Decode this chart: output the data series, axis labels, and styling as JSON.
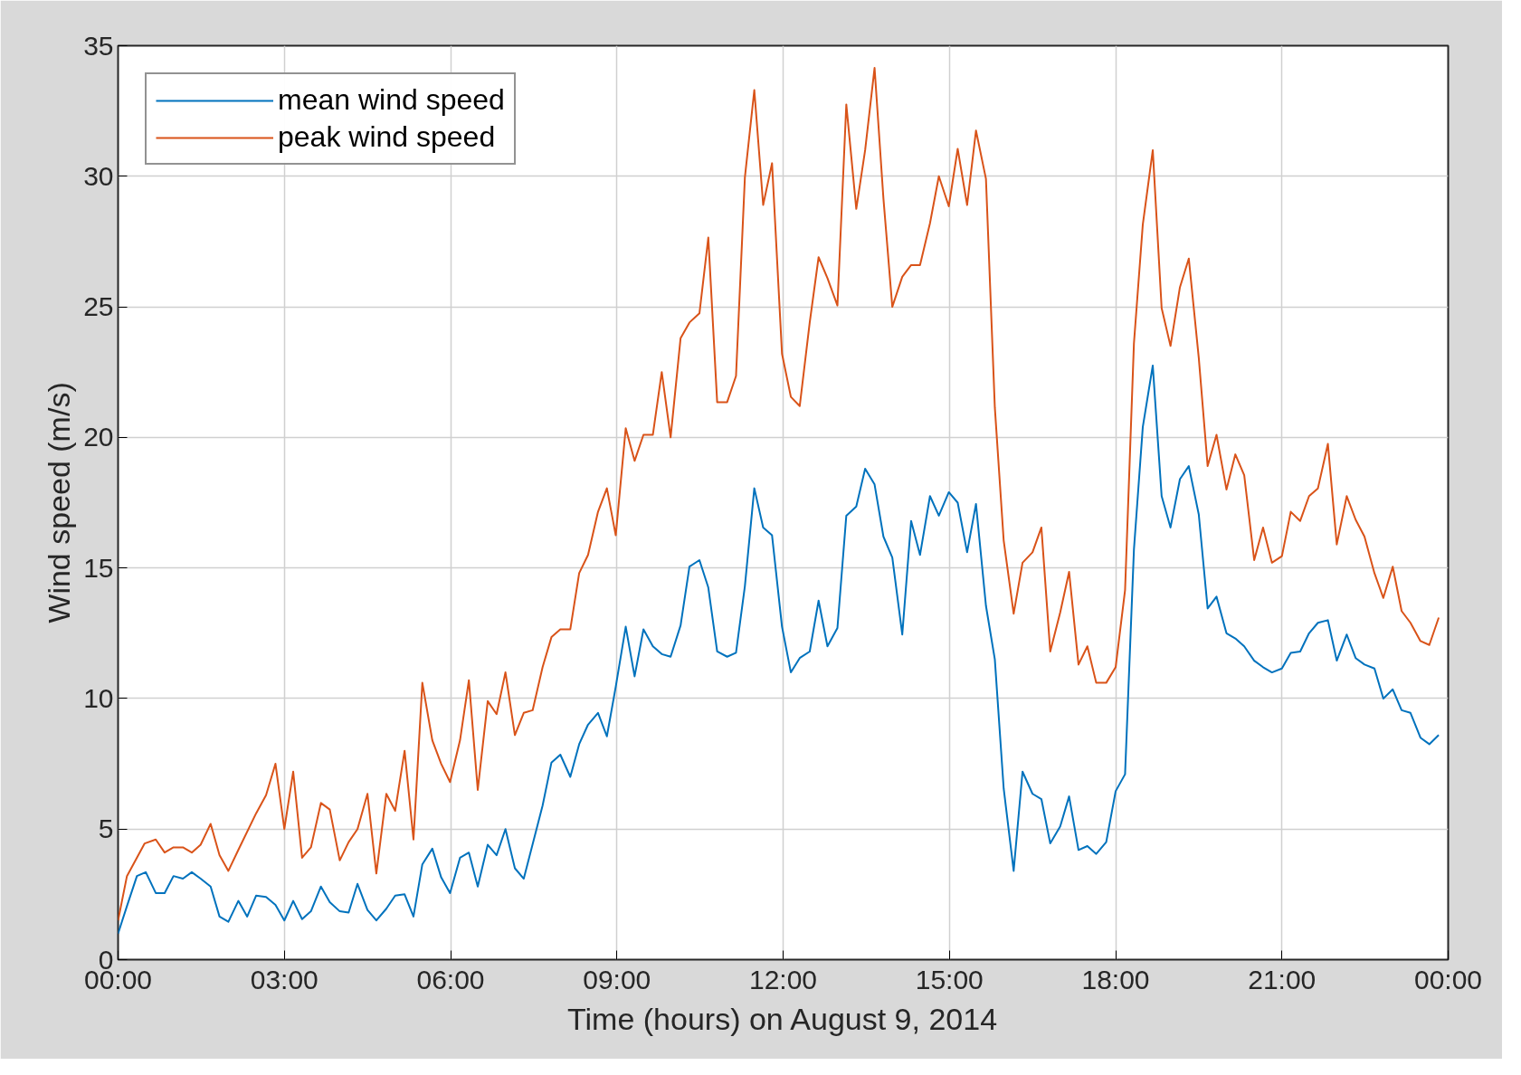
{
  "chart_data": {
    "type": "line",
    "xlabel": "Time (hours) on August 9, 2014",
    "ylabel": "Wind speed (m/s)",
    "xlim": [
      0,
      24
    ],
    "ylim": [
      0,
      35
    ],
    "xticks": [
      {
        "value": 0,
        "label": "00:00"
      },
      {
        "value": 3,
        "label": "03:00"
      },
      {
        "value": 6,
        "label": "06:00"
      },
      {
        "value": 9,
        "label": "09:00"
      },
      {
        "value": 12,
        "label": "12:00"
      },
      {
        "value": 15,
        "label": "15:00"
      },
      {
        "value": 18,
        "label": "18:00"
      },
      {
        "value": 21,
        "label": "21:00"
      },
      {
        "value": 24,
        "label": "00:00"
      }
    ],
    "yticks": [
      0,
      5,
      10,
      15,
      20,
      25,
      30,
      35
    ],
    "grid": true,
    "legend": "top left",
    "marker": "none",
    "line_style": "solid",
    "series": [
      {
        "name": "mean wind speed",
        "color": "#0072bd",
        "x": [
          0,
          0.16,
          0.34,
          0.5,
          0.68,
          0.84,
          1.0,
          1.17,
          1.33,
          1.49,
          1.67,
          1.83,
          1.99,
          2.17,
          2.33,
          2.49,
          2.67,
          2.84,
          3.0,
          3.16,
          3.32,
          3.48,
          3.66,
          3.82,
          4.0,
          4.16,
          4.32,
          4.5,
          4.66,
          4.84,
          5.0,
          5.17,
          5.33,
          5.49,
          5.67,
          5.83,
          5.99,
          6.17,
          6.33,
          6.49,
          6.67,
          6.83,
          6.99,
          7.16,
          7.32,
          7.66,
          7.82,
          7.98,
          8.16,
          8.32,
          8.48,
          8.66,
          8.82,
          8.98,
          9.16,
          9.32,
          9.48,
          9.65,
          9.81,
          9.97,
          10.15,
          10.31,
          10.49,
          10.65,
          10.81,
          10.99,
          11.15,
          11.31,
          11.48,
          11.64,
          11.8,
          11.98,
          12.14,
          12.3,
          12.48,
          12.64,
          12.8,
          12.98,
          13.14,
          13.32,
          13.48,
          13.65,
          13.81,
          13.97,
          14.15,
          14.31,
          14.47,
          14.65,
          14.81,
          14.99,
          15.15,
          15.32,
          15.48,
          15.66,
          15.82,
          15.98,
          16.16,
          16.32,
          16.5,
          16.66,
          16.82,
          17.0,
          17.16,
          17.33,
          17.49,
          17.65,
          17.83,
          18.0,
          18.17,
          18.33,
          18.49,
          18.67,
          18.83,
          18.99,
          19.16,
          19.32,
          19.5,
          19.66,
          19.82,
          20.0,
          20.16,
          20.32,
          20.5,
          20.66,
          20.82,
          21.0,
          21.16,
          21.33,
          21.49,
          21.65,
          21.83,
          21.99,
          22.17,
          22.33,
          22.49,
          22.67,
          22.83,
          23.0,
          23.16,
          23.32,
          23.5,
          23.66,
          23.83
        ],
        "values": [
          1.0,
          2.05,
          3.2,
          3.35,
          2.55,
          2.55,
          3.2,
          3.1,
          3.35,
          3.1,
          2.8,
          1.65,
          1.45,
          2.25,
          1.65,
          2.45,
          2.4,
          2.1,
          1.5,
          2.25,
          1.55,
          1.85,
          2.8,
          2.2,
          1.85,
          1.8,
          2.9,
          1.9,
          1.5,
          1.95,
          2.45,
          2.5,
          1.65,
          3.65,
          4.25,
          3.15,
          2.55,
          3.9,
          4.1,
          2.8,
          4.4,
          4.0,
          5.0,
          3.5,
          3.1,
          5.9,
          7.55,
          7.85,
          7.0,
          8.25,
          9.0,
          9.45,
          8.55,
          10.45,
          12.75,
          10.85,
          12.65,
          12.0,
          11.7,
          11.6,
          12.8,
          15.05,
          15.3,
          14.25,
          11.8,
          11.6,
          11.75,
          14.3,
          18.05,
          16.55,
          16.25,
          12.75,
          11.0,
          11.55,
          11.8,
          13.75,
          12.0,
          12.7,
          17.0,
          17.35,
          18.8,
          18.2,
          16.2,
          15.4,
          12.45,
          16.8,
          15.5,
          17.75,
          17.0,
          17.9,
          17.5,
          15.6,
          17.45,
          13.55,
          11.5,
          6.55,
          3.4,
          7.2,
          6.35,
          6.15,
          4.45,
          5.1,
          6.25,
          4.2,
          4.35,
          4.05,
          4.5,
          6.45,
          7.1,
          15.7,
          20.4,
          22.75,
          17.75,
          16.55,
          18.4,
          18.9,
          17.05,
          13.45,
          13.9,
          12.5,
          12.3,
          12.0,
          11.45,
          11.2,
          11.0,
          11.15,
          11.75,
          11.8,
          12.5,
          12.9,
          13.0,
          11.45,
          12.45,
          11.55,
          11.3,
          11.15,
          10.0,
          10.35,
          9.55,
          9.45,
          8.5,
          8.25,
          8.6
        ]
      },
      {
        "name": "peak wind speed",
        "color": "#d95319",
        "x": [
          0,
          0.16,
          0.48,
          0.68,
          0.84,
          1.0,
          1.17,
          1.33,
          1.49,
          1.67,
          1.83,
          1.99,
          2.17,
          2.49,
          2.67,
          2.84,
          3.0,
          3.16,
          3.32,
          3.48,
          3.66,
          3.82,
          4.0,
          4.16,
          4.32,
          4.5,
          4.66,
          4.84,
          5.0,
          5.17,
          5.33,
          5.49,
          5.67,
          5.83,
          5.99,
          6.17,
          6.33,
          6.49,
          6.67,
          6.83,
          6.99,
          7.16,
          7.32,
          7.48,
          7.66,
          7.82,
          7.98,
          8.16,
          8.32,
          8.48,
          8.66,
          8.82,
          8.98,
          9.16,
          9.32,
          9.48,
          9.65,
          9.81,
          9.97,
          10.15,
          10.31,
          10.49,
          10.65,
          10.81,
          10.99,
          11.15,
          11.31,
          11.48,
          11.64,
          11.8,
          11.98,
          12.14,
          12.3,
          12.48,
          12.64,
          12.8,
          12.98,
          13.14,
          13.32,
          13.48,
          13.65,
          13.81,
          13.97,
          14.15,
          14.31,
          14.47,
          14.65,
          14.81,
          14.99,
          15.15,
          15.32,
          15.48,
          15.66,
          15.82,
          15.98,
          16.16,
          16.32,
          16.5,
          16.66,
          16.82,
          17.0,
          17.16,
          17.33,
          17.49,
          17.65,
          17.83,
          18.0,
          18.17,
          18.33,
          18.49,
          18.67,
          18.83,
          18.99,
          19.16,
          19.32,
          19.5,
          19.66,
          19.82,
          20.0,
          20.16,
          20.32,
          20.5,
          20.66,
          20.82,
          21.0,
          21.16,
          21.33,
          21.49,
          21.65,
          21.83,
          21.99,
          22.17,
          22.33,
          22.49,
          22.67,
          22.83,
          23.0,
          23.16,
          23.32,
          23.5,
          23.66,
          23.83
        ],
        "values": [
          1.5,
          3.2,
          4.45,
          4.6,
          4.1,
          4.3,
          4.3,
          4.1,
          4.4,
          5.2,
          4.0,
          3.4,
          4.2,
          5.6,
          6.3,
          7.5,
          5.0,
          7.2,
          3.9,
          4.3,
          6.0,
          5.75,
          3.8,
          4.5,
          5.0,
          6.35,
          3.3,
          6.35,
          5.7,
          8.0,
          4.6,
          10.6,
          8.4,
          7.5,
          6.8,
          8.4,
          10.7,
          6.5,
          9.9,
          9.4,
          11.0,
          8.6,
          9.45,
          9.55,
          11.2,
          12.35,
          12.65,
          12.65,
          14.8,
          15.5,
          17.15,
          18.05,
          16.25,
          20.35,
          19.1,
          20.1,
          20.1,
          22.5,
          20.0,
          23.8,
          24.4,
          24.75,
          27.65,
          21.35,
          21.35,
          22.35,
          29.95,
          33.3,
          28.9,
          30.5,
          23.2,
          21.55,
          21.2,
          24.4,
          26.9,
          26.1,
          25.05,
          32.75,
          28.75,
          31.0,
          34.15,
          29.15,
          25.0,
          26.15,
          26.6,
          26.6,
          28.2,
          30.0,
          28.85,
          31.05,
          28.9,
          31.75,
          29.9,
          21.15,
          16.05,
          13.25,
          15.2,
          15.6,
          16.55,
          11.8,
          13.3,
          14.85,
          11.3,
          12.0,
          10.6,
          10.6,
          11.2,
          14.15,
          23.6,
          28.15,
          31.0,
          24.95,
          23.5,
          25.75,
          26.85,
          23.05,
          18.9,
          20.1,
          18.0,
          19.35,
          18.55,
          15.3,
          16.55,
          15.2,
          15.45,
          17.15,
          16.8,
          17.75,
          18.05,
          19.75,
          15.9,
          17.75,
          16.85,
          16.2,
          14.8,
          13.85,
          15.05,
          13.35,
          12.9,
          12.2,
          12.05,
          13.1
        ]
      }
    ]
  }
}
